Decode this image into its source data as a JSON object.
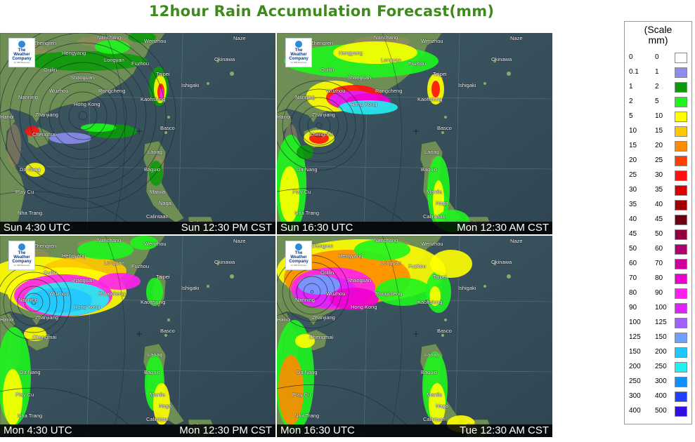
{
  "title": "12hour Rain Accumulation Forecast(mm)",
  "logo": {
    "line1": "The",
    "line2": "Weather",
    "line3": "Company",
    "sub": "An IBM Business"
  },
  "panels": [
    {
      "left_text": "Sun  4:30 UTC",
      "right_text": "Sun   12:30 PM CST"
    },
    {
      "left_text": "Sun 16:30 UTC",
      "right_text": "Mon   12:30 AM CST"
    },
    {
      "left_text": "Mon  4:30 UTC",
      "right_text": "Mon   12:30 PM CST"
    },
    {
      "left_text": "Mon 16:30 UTC",
      "right_text": "Tue   12:30 AM CST"
    }
  ],
  "places": [
    "Nanchang",
    "Zhengren",
    "Wenzhou",
    "Naze",
    "Hengyang",
    "Fuzhou",
    "Okinawa",
    "Guilin",
    "Longyan",
    "Taipei",
    "Shaoguan",
    "Ishigaki",
    "Nanning",
    "Wuzhou",
    "Rongcheng",
    "Hong Kong",
    "Kaohsiung",
    "Hanoi",
    "Zhanjiang",
    "Basco",
    "Chengmai",
    "Laoag",
    "Da Nang",
    "Baguio",
    "Play Cu",
    "Manila",
    "Naga",
    "Nha Trang",
    "Calintaan",
    "Calbayog"
  ],
  "legend": {
    "header_line1": "(Scale",
    "header_line2": "mm)",
    "rows": [
      {
        "a": "0",
        "b": "0",
        "color": "#ffffff"
      },
      {
        "a": "0.1",
        "b": "1",
        "color": "#8c8cf0"
      },
      {
        "a": "1",
        "b": "2",
        "color": "#0a9a0a"
      },
      {
        "a": "2",
        "b": "5",
        "color": "#1ef51e"
      },
      {
        "a": "5",
        "b": "10",
        "color": "#ffff00"
      },
      {
        "a": "10",
        "b": "15",
        "color": "#ffc800"
      },
      {
        "a": "15",
        "b": "20",
        "color": "#ff8c00"
      },
      {
        "a": "20",
        "b": "25",
        "color": "#ff4000"
      },
      {
        "a": "25",
        "b": "30",
        "color": "#ff1010"
      },
      {
        "a": "30",
        "b": "35",
        "color": "#dc0000"
      },
      {
        "a": "35",
        "b": "40",
        "color": "#a00000"
      },
      {
        "a": "40",
        "b": "45",
        "color": "#700010"
      },
      {
        "a": "45",
        "b": "50",
        "color": "#900040"
      },
      {
        "a": "50",
        "b": "60",
        "color": "#b00070"
      },
      {
        "a": "60",
        "b": "70",
        "color": "#d000a0"
      },
      {
        "a": "70",
        "b": "80",
        "color": "#f000d0"
      },
      {
        "a": "80",
        "b": "90",
        "color": "#ff20f0"
      },
      {
        "a": "90",
        "b": "100",
        "color": "#e020ff"
      },
      {
        "a": "100",
        "b": "125",
        "color": "#a060ff"
      },
      {
        "a": "125",
        "b": "150",
        "color": "#6ea0ff"
      },
      {
        "a": "150",
        "b": "200",
        "color": "#20c8ff"
      },
      {
        "a": "200",
        "b": "250",
        "color": "#20f0f0"
      },
      {
        "a": "250",
        "b": "300",
        "color": "#1090ff"
      },
      {
        "a": "300",
        "b": "400",
        "color": "#2040ff"
      },
      {
        "a": "400",
        "b": "500",
        "color": "#3010e0"
      }
    ]
  }
}
